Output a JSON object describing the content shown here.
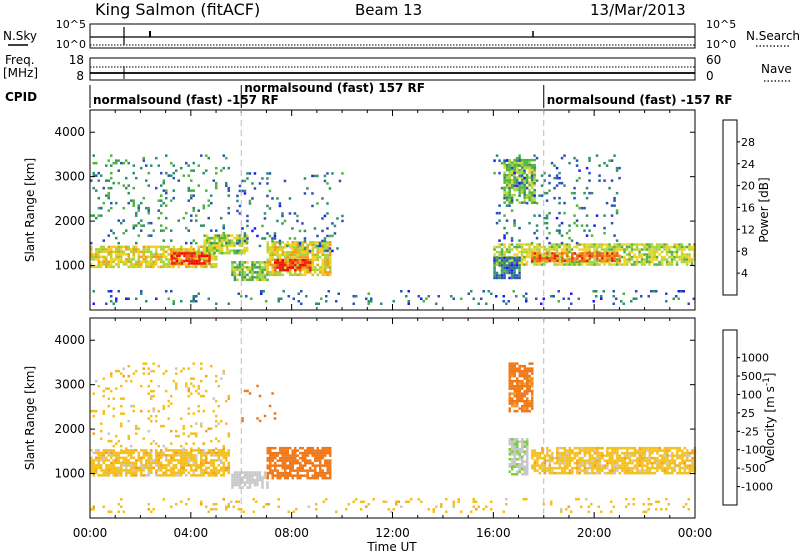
{
  "header": {
    "station": "King Salmon (fitACF)",
    "beam": "Beam 13",
    "date": "13/Mar/2013"
  },
  "strips": {
    "nsky_label": "N.Sky",
    "nsky_ticks": [
      "10^5",
      "10^0"
    ],
    "nsearch_label": "N.Search",
    "nsearch_ticks": [
      "10^5",
      "10^0"
    ],
    "freq_label_1": "Freq.",
    "freq_label_2": "[MHz]",
    "freq_ticks": [
      "18",
      "8"
    ],
    "nave_label": "Nave",
    "nave_ticks": [
      "60",
      "0"
    ],
    "cpid_label": "CPID",
    "cpid_segments": [
      {
        "label": "normalsound (fast) -157 RF",
        "start_hour": 0
      },
      {
        "label": "normalsound (fast) 157 RF",
        "start_hour": 6
      },
      {
        "label": "normalsound (fast) -157 RF",
        "start_hour": 18
      }
    ]
  },
  "axes": {
    "x_ticks": [
      "00:00",
      "04:00",
      "08:00",
      "12:00",
      "16:00",
      "20:00",
      "00:00"
    ],
    "x_label": "Time UT",
    "y_label": "Slant Range [km]",
    "y_ticks": [
      "1000",
      "2000",
      "3000",
      "4000"
    ]
  },
  "colorbars": {
    "power": {
      "label": "Power [dB]",
      "ticks": [
        "4",
        "8",
        "12",
        "16",
        "20",
        "24",
        "28"
      ],
      "colors": [
        "#1a1aff",
        "#2a52b8",
        "#2f8f6a",
        "#4fb23c",
        "#a8d43a",
        "#f4d020",
        "#f59a1a",
        "#f06018",
        "#e82010",
        "#ff0000"
      ]
    },
    "velocity": {
      "label": "Velocity [m s^-1]",
      "ticks": [
        "1000",
        "500",
        "100",
        "25",
        "-25",
        "-100",
        "-500",
        "-1000"
      ],
      "colors": [
        "#1f3fa8",
        "#2a6fb0",
        "#2f8f6a",
        "#3fa84a",
        "#7ccf3a",
        "#c8c8c8",
        "#f4c020",
        "#f5a020",
        "#f07818",
        "#ee4a12",
        "#e82010",
        "#ff0000"
      ]
    }
  },
  "chart_data": [
    {
      "type": "heatmap",
      "panel": "power",
      "title": "Power",
      "xlabel": "Time UT",
      "ylabel": "Slant Range [km]",
      "xlim": [
        0,
        24
      ],
      "ylim": [
        0,
        4500
      ],
      "clim": [
        0,
        30
      ],
      "units": "dB",
      "blobs": [
        {
          "t0": 0.0,
          "t1": 5.0,
          "r0": 950,
          "r1": 1450,
          "value": 16
        },
        {
          "t0": 3.2,
          "t1": 4.7,
          "r0": 1050,
          "r1": 1300,
          "value": 26
        },
        {
          "t0": 4.5,
          "t1": 6.2,
          "r0": 1250,
          "r1": 1700,
          "value": 14
        },
        {
          "t0": 5.6,
          "t1": 7.0,
          "r0": 700,
          "r1": 1100,
          "value": 12
        },
        {
          "t0": 7.0,
          "t1": 9.5,
          "r0": 800,
          "r1": 1550,
          "value": 16
        },
        {
          "t0": 7.3,
          "t1": 8.7,
          "r0": 900,
          "r1": 1150,
          "value": 24
        },
        {
          "t0": 16.0,
          "t1": 24.0,
          "r0": 1000,
          "r1": 1500,
          "value": 14
        },
        {
          "t0": 17.5,
          "t1": 21.0,
          "r0": 1100,
          "r1": 1300,
          "value": 22
        },
        {
          "t0": 16.4,
          "t1": 17.6,
          "r0": 2400,
          "r1": 3400,
          "value": 12
        },
        {
          "t0": 16.0,
          "t1": 17.0,
          "r0": 700,
          "r1": 1200,
          "value": 6
        }
      ],
      "sparse_regions": [
        {
          "t0": 0.0,
          "t1": 5.5,
          "r0": 1500,
          "r1": 3500,
          "value": 8
        },
        {
          "t0": 5.8,
          "t1": 10.0,
          "r0": 1300,
          "r1": 3100,
          "value": 6
        },
        {
          "t0": 16.0,
          "t1": 21.0,
          "r0": 1500,
          "r1": 3500,
          "value": 6
        },
        {
          "t0": 0.0,
          "t1": 24.0,
          "r0": 150,
          "r1": 450,
          "value": 6
        }
      ]
    },
    {
      "type": "heatmap",
      "panel": "velocity",
      "title": "Velocity",
      "xlabel": "Time UT",
      "ylabel": "Slant Range [km]",
      "xlim": [
        0,
        24
      ],
      "ylim": [
        0,
        4500
      ],
      "clim": [
        -1000,
        1000
      ],
      "units": "m s^-1",
      "blobs": [
        {
          "t0": 0.0,
          "t1": 5.5,
          "r0": 950,
          "r1": 1550,
          "value": 0
        },
        {
          "t0": 5.6,
          "t1": 7.0,
          "r0": 700,
          "r1": 1050,
          "value": 60
        },
        {
          "t0": 7.0,
          "t1": 9.5,
          "r0": 900,
          "r1": 1600,
          "value": -150
        },
        {
          "t0": 16.6,
          "t1": 17.3,
          "r0": 1000,
          "r1": 1800,
          "value": 90
        },
        {
          "t0": 17.5,
          "t1": 24.0,
          "r0": 1000,
          "r1": 1600,
          "value": 0
        },
        {
          "t0": 16.6,
          "t1": 17.5,
          "r0": 2400,
          "r1": 3500,
          "value": -120
        }
      ],
      "sparse_regions": [
        {
          "t0": 0.0,
          "t1": 5.5,
          "r0": 1500,
          "r1": 3500,
          "value": 0
        },
        {
          "t0": 6.0,
          "t1": 7.5,
          "r0": 2200,
          "r1": 3000,
          "value": -200
        },
        {
          "t0": 0.0,
          "t1": 24.0,
          "r0": 150,
          "r1": 450,
          "value": 0
        }
      ]
    }
  ]
}
